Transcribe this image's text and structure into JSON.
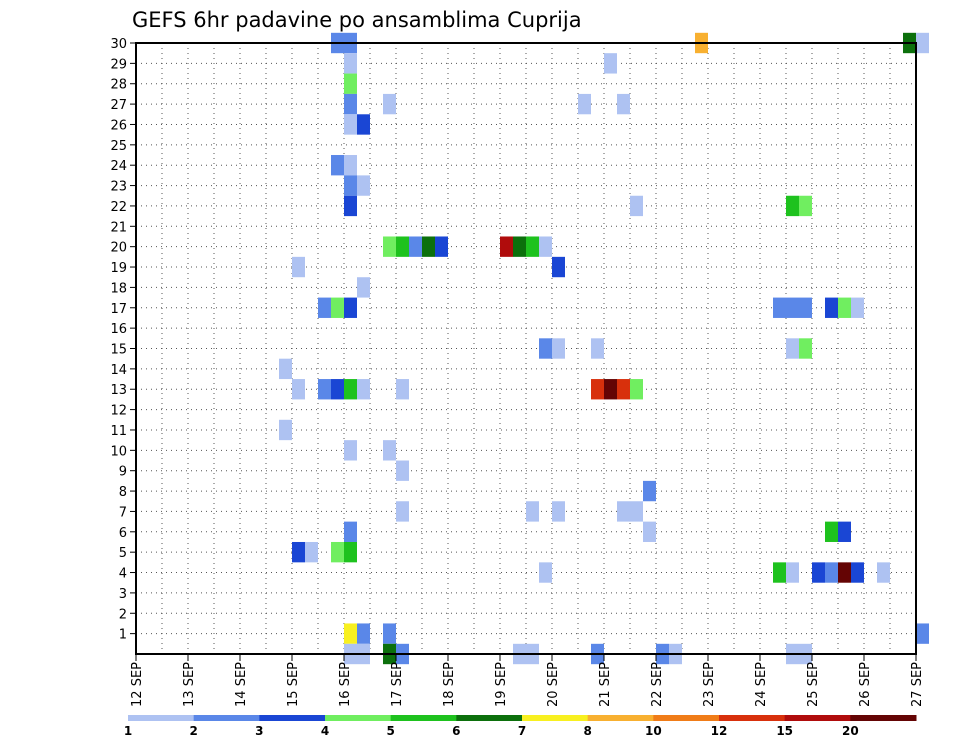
{
  "chart_data": {
    "type": "heatmap",
    "title": "GEFS 6hr padavine po ansamblima Cuprija",
    "xlabel": "",
    "ylabel": "",
    "y_ticks": [
      1,
      2,
      3,
      4,
      5,
      6,
      7,
      8,
      9,
      10,
      11,
      12,
      13,
      14,
      15,
      16,
      17,
      18,
      19,
      20,
      21,
      22,
      23,
      24,
      25,
      26,
      27,
      28,
      29,
      30
    ],
    "x_ticks": [
      "12 SEP",
      "13 SEP",
      "14 SEP",
      "15 SEP",
      "16 SEP",
      "17 SEP",
      "18 SEP",
      "19 SEP",
      "20 SEP",
      "21 SEP",
      "22 SEP",
      "23 SEP",
      "24 SEP",
      "25 SEP",
      "26 SEP",
      "27 SEP"
    ],
    "x_range_days": [
      12,
      27
    ],
    "y_range": [
      0,
      30
    ],
    "grid": true,
    "colorbar": {
      "colors": [
        "#aec2f2",
        "#5a87e8",
        "#1a46d4",
        "#70ee60",
        "#1ec21e",
        "#0c700c",
        "#f8f020",
        "#f8b030",
        "#f07c18",
        "#d8300c",
        "#b00c0c",
        "#640404"
      ],
      "labels": [
        "1",
        "2",
        "3",
        "4",
        "5",
        "6",
        "7",
        "8",
        "10",
        "12",
        "15",
        "20"
      ]
    },
    "cells_note": "each cell: [member, start day of Sep, end day of Sep, color index]",
    "cells": [
      [
        30,
        15.75,
        16.25,
        1
      ],
      [
        30,
        22.75,
        23.0,
        7
      ],
      [
        30,
        26.75,
        27.0,
        5
      ],
      [
        30,
        27.0,
        27.25,
        0
      ],
      [
        29,
        16.0,
        16.25,
        0
      ],
      [
        29,
        21.0,
        21.25,
        0
      ],
      [
        28,
        16.0,
        16.25,
        3
      ],
      [
        27,
        16.0,
        16.25,
        1
      ],
      [
        27,
        16.75,
        17.0,
        0
      ],
      [
        27,
        20.5,
        20.75,
        0
      ],
      [
        27,
        21.25,
        21.5,
        0
      ],
      [
        26,
        16.0,
        16.25,
        0
      ],
      [
        26,
        16.25,
        16.5,
        2
      ],
      [
        24,
        15.75,
        16.0,
        1
      ],
      [
        24,
        16.0,
        16.25,
        0
      ],
      [
        23,
        16.0,
        16.25,
        1
      ],
      [
        23,
        16.25,
        16.5,
        0
      ],
      [
        22,
        16.0,
        16.25,
        2
      ],
      [
        22,
        21.5,
        21.75,
        0
      ],
      [
        22,
        24.5,
        24.75,
        4
      ],
      [
        22,
        24.75,
        25.0,
        3
      ],
      [
        20,
        16.75,
        17.0,
        3
      ],
      [
        20,
        17.0,
        17.25,
        4
      ],
      [
        20,
        17.25,
        17.5,
        1
      ],
      [
        20,
        17.5,
        17.75,
        5
      ],
      [
        20,
        17.75,
        18.0,
        2
      ],
      [
        20,
        19.0,
        19.25,
        10
      ],
      [
        20,
        19.25,
        19.5,
        5
      ],
      [
        20,
        19.5,
        19.75,
        4
      ],
      [
        20,
        19.75,
        20.0,
        0
      ],
      [
        19,
        15.0,
        15.25,
        0
      ],
      [
        19,
        20.0,
        20.25,
        2
      ],
      [
        18,
        16.25,
        16.5,
        0
      ],
      [
        17,
        15.5,
        15.75,
        1
      ],
      [
        17,
        15.75,
        16.0,
        3
      ],
      [
        17,
        16.0,
        16.25,
        2
      ],
      [
        17,
        24.25,
        25.0,
        1
      ],
      [
        17,
        25.25,
        25.5,
        2
      ],
      [
        17,
        25.5,
        25.75,
        3
      ],
      [
        17,
        25.75,
        26.0,
        0
      ],
      [
        15,
        19.75,
        20.0,
        1
      ],
      [
        15,
        20.0,
        20.25,
        0
      ],
      [
        15,
        20.75,
        21.0,
        0
      ],
      [
        15,
        24.5,
        24.75,
        0
      ],
      [
        15,
        24.75,
        25.0,
        3
      ],
      [
        14,
        14.75,
        15.0,
        0
      ],
      [
        13,
        15.0,
        15.25,
        0
      ],
      [
        13,
        15.5,
        15.75,
        1
      ],
      [
        13,
        15.75,
        16.0,
        2
      ],
      [
        13,
        16.0,
        16.25,
        4
      ],
      [
        13,
        16.25,
        16.5,
        0
      ],
      [
        13,
        17.0,
        17.25,
        0
      ],
      [
        13,
        20.75,
        21.0,
        9
      ],
      [
        13,
        21.0,
        21.25,
        11
      ],
      [
        13,
        21.25,
        21.5,
        9
      ],
      [
        13,
        21.5,
        21.75,
        3
      ],
      [
        11,
        14.75,
        15.0,
        0
      ],
      [
        10,
        16.0,
        16.25,
        0
      ],
      [
        10,
        16.75,
        17.0,
        0
      ],
      [
        9,
        17.0,
        17.25,
        0
      ],
      [
        8,
        21.75,
        22.0,
        1
      ],
      [
        7,
        17.0,
        17.25,
        0
      ],
      [
        7,
        19.5,
        19.75,
        0
      ],
      [
        7,
        20.0,
        20.25,
        0
      ],
      [
        7,
        21.25,
        21.75,
        0
      ],
      [
        6,
        16.0,
        16.25,
        1
      ],
      [
        6,
        21.75,
        22.0,
        0
      ],
      [
        6,
        25.25,
        25.5,
        4
      ],
      [
        6,
        25.5,
        25.75,
        2
      ],
      [
        5,
        15.0,
        15.25,
        2
      ],
      [
        5,
        15.25,
        15.5,
        0
      ],
      [
        5,
        15.75,
        16.0,
        3
      ],
      [
        5,
        16.0,
        16.25,
        4
      ],
      [
        4,
        19.75,
        20.0,
        0
      ],
      [
        4,
        24.25,
        24.5,
        4
      ],
      [
        4,
        24.5,
        24.75,
        0
      ],
      [
        4,
        25.0,
        25.25,
        2
      ],
      [
        4,
        25.25,
        25.5,
        1
      ],
      [
        4,
        25.5,
        25.75,
        11
      ],
      [
        4,
        25.75,
        26.0,
        2
      ],
      [
        4,
        26.25,
        26.5,
        0
      ],
      [
        1,
        16.0,
        16.25,
        6
      ],
      [
        1,
        16.25,
        16.5,
        1
      ],
      [
        1,
        16.75,
        17.0,
        1
      ],
      [
        1,
        27.0,
        27.25,
        1
      ],
      [
        0,
        16.0,
        16.5,
        0
      ],
      [
        0,
        16.75,
        17.0,
        5
      ],
      [
        0,
        17.0,
        17.25,
        1
      ],
      [
        0,
        19.25,
        19.75,
        0
      ],
      [
        0,
        20.75,
        21.0,
        1
      ],
      [
        0,
        22.0,
        22.25,
        1
      ],
      [
        0,
        22.25,
        22.5,
        0
      ],
      [
        0,
        24.5,
        25.0,
        0
      ]
    ]
  }
}
